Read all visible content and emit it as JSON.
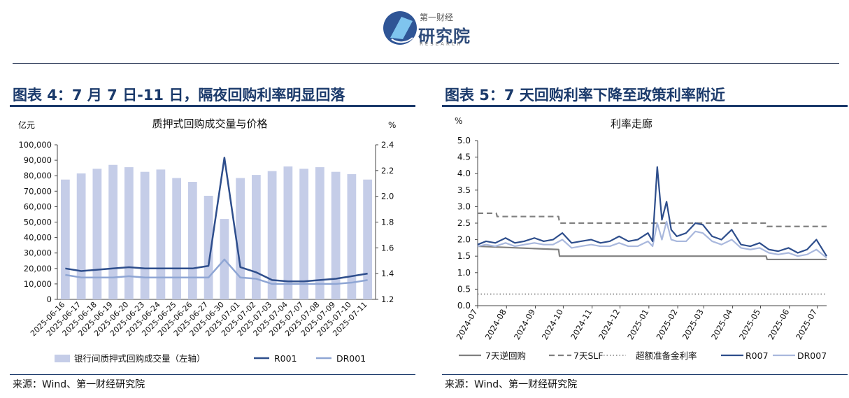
{
  "header": {
    "logo_top": "第一财经",
    "logo_main": "研究院",
    "logo_sub": "RESEARCH"
  },
  "colors": {
    "accent": "#1b3a6b",
    "bar": "#c5cde8",
    "r_dark": "#2e4e8c",
    "r_light": "#8fa6d4",
    "grey": "#808080"
  },
  "figures": [
    {
      "title": "图表 4：7 月 7 日-11 日，隔夜回购利率明显回落",
      "source": "来源：Wind、第一财经研究院"
    },
    {
      "title": "图表 5：7 天回购利率下降至政策利率附近",
      "source": "来源：Wind、第一财经研究院"
    }
  ],
  "chart_data": [
    {
      "type": "bar",
      "title": "质押式回购成交量与价格",
      "y_left_unit": "亿元",
      "y_right_unit": "%",
      "ylim_left": [
        0,
        100000
      ],
      "ylim_right": [
        1.2,
        2.4
      ],
      "y_left_ticks": [
        "0",
        "10,000",
        "20,000",
        "30,000",
        "40,000",
        "50,000",
        "60,000",
        "70,000",
        "80,000",
        "90,000",
        "100,000"
      ],
      "y_right_ticks": [
        "1.2",
        "1.4",
        "1.6",
        "1.8",
        "2.0",
        "2.2",
        "2.4"
      ],
      "categories": [
        "2025-06-16",
        "2025-06-17",
        "2025-06-18",
        "2025-06-19",
        "2025-06-20",
        "2025-06-23",
        "2025-06-24",
        "2025-06-25",
        "2025-06-26",
        "2025-06-27",
        "2025-06-30",
        "2025-07-01",
        "2025-07-02",
        "2025-07-03",
        "2025-07-04",
        "2025-07-07",
        "2025-07-08",
        "2025-07-09",
        "2025-07-10",
        "2025-07-11"
      ],
      "series": [
        {
          "name": "银行间质押式回购成交量（左轴）",
          "type": "bar",
          "axis": "left",
          "values": [
            77500,
            81500,
            84500,
            87000,
            85500,
            82500,
            84000,
            78500,
            76000,
            67000,
            52000,
            78500,
            80500,
            83000,
            86000,
            84500,
            85500,
            82500,
            81000,
            77500
          ]
        },
        {
          "name": "R001",
          "type": "line",
          "axis": "right",
          "values": [
            1.44,
            1.42,
            1.43,
            1.44,
            1.45,
            1.44,
            1.44,
            1.44,
            1.44,
            1.46,
            2.3,
            1.45,
            1.41,
            1.35,
            1.34,
            1.34,
            1.35,
            1.36,
            1.38,
            1.4
          ]
        },
        {
          "name": "DR001",
          "type": "line",
          "axis": "right",
          "values": [
            1.39,
            1.37,
            1.37,
            1.37,
            1.38,
            1.37,
            1.37,
            1.37,
            1.37,
            1.37,
            1.51,
            1.37,
            1.36,
            1.32,
            1.32,
            1.32,
            1.32,
            1.32,
            1.33,
            1.35
          ]
        }
      ],
      "legend_position": "bottom"
    },
    {
      "type": "line",
      "title": "利率走廊",
      "y_unit": "%",
      "ylim": [
        0.0,
        5.0
      ],
      "y_ticks": [
        "0.0",
        "0.5",
        "1.0",
        "1.5",
        "2.0",
        "2.5",
        "3.0",
        "3.5",
        "4.0",
        "4.5",
        "5.0"
      ],
      "x_ticks": [
        "2024-07",
        "2024-08",
        "2024-09",
        "2024-10",
        "2024-11",
        "2024-12",
        "2025-01",
        "2025-02",
        "2025-03",
        "2025-04",
        "2025-05",
        "2025-06",
        "2025-07"
      ],
      "xlim": [
        "2024-07-01",
        "2025-07-11"
      ],
      "series": [
        {
          "name": "7天逆回购",
          "style": "solid",
          "color": "#808080",
          "x": [
            "2024-07-01",
            "2024-09-26",
            "2024-09-27",
            "2025-05-07",
            "2025-05-08",
            "2025-07-11"
          ],
          "y": [
            1.8,
            1.7,
            1.5,
            1.5,
            1.4,
            1.4
          ]
        },
        {
          "name": "7天SLF",
          "style": "dashed",
          "color": "#808080",
          "x": [
            "2024-07-01",
            "2024-07-21",
            "2024-07-22",
            "2024-09-26",
            "2024-09-27",
            "2025-05-07",
            "2025-05-08",
            "2025-07-11"
          ],
          "y": [
            2.8,
            2.8,
            2.7,
            2.7,
            2.5,
            2.5,
            2.4,
            2.4
          ]
        },
        {
          "name": "超额准备金利率",
          "style": "dotted",
          "color": "#808080",
          "x": [
            "2024-07-01",
            "2025-07-11"
          ],
          "y": [
            0.35,
            0.35
          ]
        },
        {
          "name": "R007",
          "style": "solid",
          "color": "#2e4e8c",
          "x": [
            "2024-07-01",
            "2024-07-10",
            "2024-07-20",
            "2024-07-31",
            "2024-08-10",
            "2024-08-20",
            "2024-08-31",
            "2024-09-10",
            "2024-09-20",
            "2024-09-30",
            "2024-10-10",
            "2024-10-20",
            "2024-10-31",
            "2024-11-10",
            "2024-11-20",
            "2024-11-30",
            "2024-12-10",
            "2024-12-20",
            "2024-12-31",
            "2025-01-05",
            "2025-01-10",
            "2025-01-15",
            "2025-01-20",
            "2025-01-25",
            "2025-01-31",
            "2025-02-10",
            "2025-02-20",
            "2025-02-28",
            "2025-03-10",
            "2025-03-20",
            "2025-03-31",
            "2025-04-10",
            "2025-04-20",
            "2025-04-30",
            "2025-05-10",
            "2025-05-20",
            "2025-05-31",
            "2025-06-10",
            "2025-06-20",
            "2025-06-30",
            "2025-07-11"
          ],
          "y": [
            1.85,
            1.95,
            1.9,
            2.05,
            1.9,
            1.95,
            2.05,
            1.95,
            2.0,
            2.2,
            1.9,
            1.95,
            2.0,
            1.9,
            1.95,
            2.1,
            1.95,
            2.0,
            2.2,
            1.95,
            4.2,
            2.6,
            3.15,
            2.3,
            2.1,
            2.2,
            2.5,
            2.45,
            2.1,
            2.0,
            2.3,
            1.85,
            1.8,
            1.9,
            1.7,
            1.65,
            1.75,
            1.6,
            1.7,
            2.0,
            1.5
          ]
        },
        {
          "name": "DR007",
          "style": "solid",
          "color": "#a9b8dd",
          "x": [
            "2024-07-01",
            "2024-07-10",
            "2024-07-20",
            "2024-07-31",
            "2024-08-10",
            "2024-08-20",
            "2024-08-31",
            "2024-09-10",
            "2024-09-20",
            "2024-09-30",
            "2024-10-10",
            "2024-10-20",
            "2024-10-31",
            "2024-11-10",
            "2024-11-20",
            "2024-11-30",
            "2024-12-10",
            "2024-12-20",
            "2024-12-31",
            "2025-01-05",
            "2025-01-10",
            "2025-01-15",
            "2025-01-20",
            "2025-01-25",
            "2025-01-31",
            "2025-02-10",
            "2025-02-20",
            "2025-02-28",
            "2025-03-10",
            "2025-03-20",
            "2025-03-31",
            "2025-04-10",
            "2025-04-20",
            "2025-04-30",
            "2025-05-10",
            "2025-05-20",
            "2025-05-31",
            "2025-06-10",
            "2025-06-20",
            "2025-06-30",
            "2025-07-11"
          ],
          "y": [
            1.8,
            1.85,
            1.8,
            1.9,
            1.8,
            1.85,
            1.9,
            1.85,
            1.85,
            2.0,
            1.75,
            1.8,
            1.85,
            1.8,
            1.8,
            1.9,
            1.8,
            1.8,
            1.95,
            1.8,
            2.5,
            2.0,
            2.55,
            2.0,
            1.95,
            1.95,
            2.25,
            2.2,
            1.95,
            1.85,
            2.0,
            1.75,
            1.7,
            1.75,
            1.6,
            1.55,
            1.6,
            1.5,
            1.55,
            1.7,
            1.45
          ]
        }
      ],
      "legend_position": "bottom"
    }
  ]
}
